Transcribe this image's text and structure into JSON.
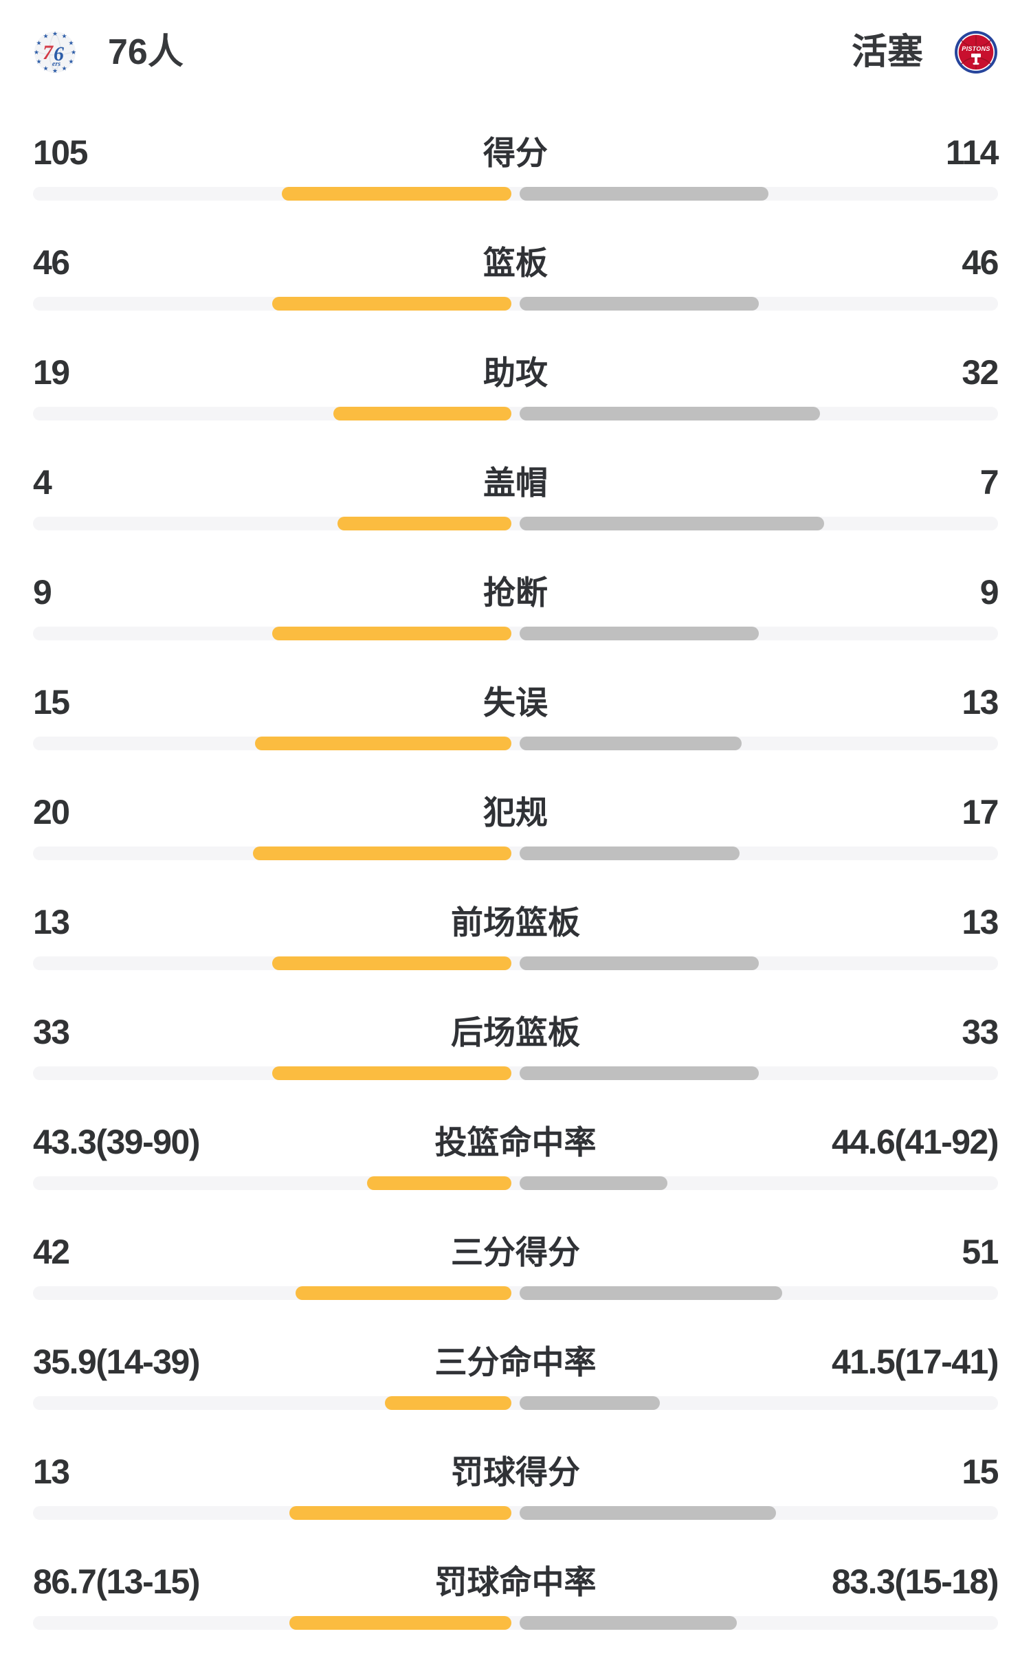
{
  "teams": {
    "left": {
      "name": "76人",
      "logo_icon": "philadelphia-76ers-logo",
      "logo_text": "76 ers"
    },
    "right": {
      "name": "活塞",
      "logo_icon": "detroit-pistons-logo",
      "logo_text": "PISTONS"
    }
  },
  "colors": {
    "left_bar": "#FBBC40",
    "right_bar": "#BFBFBF",
    "bar_track": "#F5F5F7",
    "text": "#313335",
    "sixers_blue": "#2D5DA8",
    "sixers_red": "#D33B47",
    "pistons_blue": "#27459C",
    "pistons_red": "#C8102E"
  },
  "chart_data": {
    "type": "bar",
    "subtype": "paired-horizontal-comparison",
    "title": "",
    "legend_entries": [
      "76人",
      "活塞"
    ],
    "legend_position": "top",
    "grid": false,
    "bar_scaling": {
      "count_rows": "bar fraction of half-track = value / (left value + right value)",
      "percent_rows": "bar fraction of half-track = value / (value + 100)"
    },
    "rows": [
      {
        "label": "得分",
        "left": "105",
        "right": "114",
        "left_num": 105,
        "right_num": 114,
        "percent": false
      },
      {
        "label": "篮板",
        "left": "46",
        "right": "46",
        "left_num": 46,
        "right_num": 46,
        "percent": false
      },
      {
        "label": "助攻",
        "left": "19",
        "right": "32",
        "left_num": 19,
        "right_num": 32,
        "percent": false
      },
      {
        "label": "盖帽",
        "left": "4",
        "right": "7",
        "left_num": 4,
        "right_num": 7,
        "percent": false
      },
      {
        "label": "抢断",
        "left": "9",
        "right": "9",
        "left_num": 9,
        "right_num": 9,
        "percent": false
      },
      {
        "label": "失误",
        "left": "15",
        "right": "13",
        "left_num": 15,
        "right_num": 13,
        "percent": false
      },
      {
        "label": "犯规",
        "left": "20",
        "right": "17",
        "left_num": 20,
        "right_num": 17,
        "percent": false
      },
      {
        "label": "前场篮板",
        "left": "13",
        "right": "13",
        "left_num": 13,
        "right_num": 13,
        "percent": false
      },
      {
        "label": "后场篮板",
        "left": "33",
        "right": "33",
        "left_num": 33,
        "right_num": 33,
        "percent": false
      },
      {
        "label": "投篮命中率",
        "left": "43.3(39-90)",
        "right": "44.6(41-92)",
        "left_num": 43.3,
        "right_num": 44.6,
        "percent": true
      },
      {
        "label": "三分得分",
        "left": "42",
        "right": "51",
        "left_num": 42,
        "right_num": 51,
        "percent": false
      },
      {
        "label": "三分命中率",
        "left": "35.9(14-39)",
        "right": "41.5(17-41)",
        "left_num": 35.9,
        "right_num": 41.5,
        "percent": true
      },
      {
        "label": "罚球得分",
        "left": "13",
        "right": "15",
        "left_num": 13,
        "right_num": 15,
        "percent": false
      },
      {
        "label": "罚球命中率",
        "left": "86.7(13-15)",
        "right": "83.3(15-18)",
        "left_num": 86.7,
        "right_num": 83.3,
        "percent": true
      }
    ]
  }
}
